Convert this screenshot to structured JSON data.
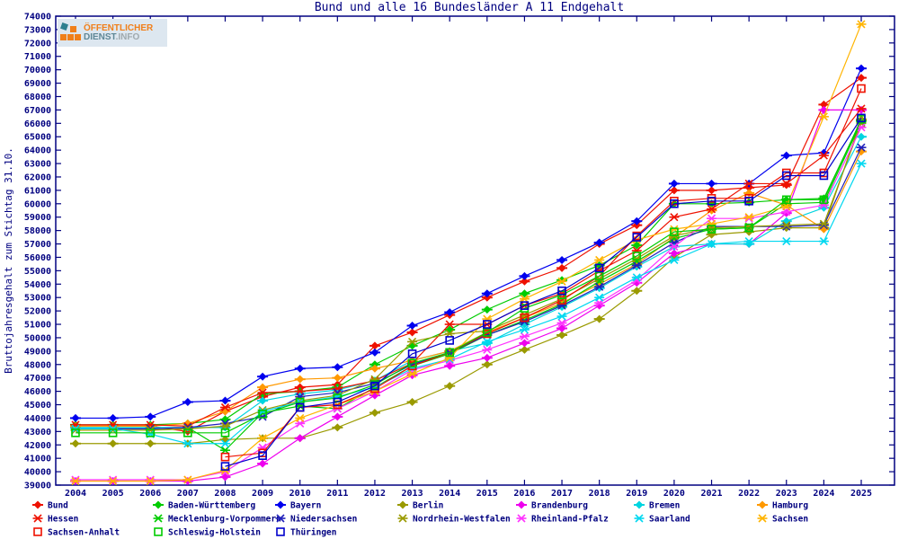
{
  "title": "Bund und alle 16 Bundesländer A 11 Endgehalt",
  "logo": {
    "line1": "ÖFFENTLICHER",
    "line2_part1": "DIENST",
    "line2_part2": ".INFO"
  },
  "colors": {
    "axis": "#000080",
    "title": "#000080",
    "tick_label": "#000080",
    "legend_label": "#000080",
    "background": "#ffffff"
  },
  "chart_data": {
    "type": "line",
    "title": "Bund und alle 16 Bundesländer A 11 Endgehalt",
    "xlabel": "",
    "ylabel": "Bruttojahresgehalt zum Stichtag 31.10.",
    "ylim": [
      39000,
      74000
    ],
    "ytick_step": 1000,
    "grid": false,
    "legend_position": "bottom",
    "x": [
      2004,
      2005,
      2006,
      2007,
      2008,
      2009,
      2010,
      2011,
      2012,
      2013,
      2014,
      2015,
      2016,
      2017,
      2018,
      2019,
      2020,
      2021,
      2022,
      2023,
      2024,
      2025
    ],
    "series": [
      {
        "name": "Bund",
        "color": "#ee1100",
        "marker": "diamond",
        "values": [
          43400,
          43400,
          43400,
          43000,
          44500,
          45600,
          46300,
          46500,
          49400,
          50400,
          51700,
          53000,
          54200,
          55200,
          57000,
          58400,
          61000,
          61000,
          61200,
          61400,
          67400,
          69400
        ]
      },
      {
        "name": "Baden-Württemberg",
        "color": "#00cc00",
        "marker": "diamond",
        "values": [
          43500,
          43500,
          43500,
          43600,
          43900,
          45800,
          46000,
          46300,
          48000,
          49400,
          50600,
          52100,
          53300,
          54300,
          55400,
          56900,
          60000,
          60000,
          60100,
          60300,
          60400,
          66200
        ]
      },
      {
        "name": "Bayern",
        "color": "#0000ee",
        "marker": "diamond",
        "values": [
          44000,
          44000,
          44100,
          45200,
          45300,
          47100,
          47700,
          47800,
          48900,
          50900,
          51900,
          53300,
          54600,
          55800,
          57100,
          58700,
          61500,
          61500,
          61500,
          63600,
          63800,
          70100
        ]
      },
      {
        "name": "Berlin",
        "color": "#9a9a00",
        "marker": "diamond",
        "values": [
          42100,
          42100,
          42100,
          42100,
          42400,
          42500,
          42500,
          43300,
          44400,
          45200,
          46400,
          48000,
          49100,
          50200,
          51400,
          53500,
          56000,
          57700,
          57900,
          58200,
          58200,
          66300
        ]
      },
      {
        "name": "Brandenburg",
        "color": "#ee00ee",
        "marker": "diamond",
        "values": [
          39300,
          39300,
          39300,
          39300,
          39600,
          40600,
          42500,
          44100,
          45700,
          47200,
          47900,
          48500,
          49600,
          50700,
          52400,
          54100,
          56300,
          57000,
          57000,
          59300,
          67000,
          67000
        ]
      },
      {
        "name": "Bremen",
        "color": "#00d4e0",
        "marker": "diamond",
        "values": [
          43300,
          43300,
          43300,
          43300,
          43300,
          45300,
          45800,
          46100,
          46800,
          48300,
          49000,
          49600,
          51000,
          52300,
          53700,
          55300,
          56800,
          57000,
          57000,
          58700,
          59700,
          65000
        ]
      },
      {
        "name": "Hamburg",
        "color": "#ff9900",
        "marker": "diamond",
        "values": [
          43400,
          43400,
          43400,
          43600,
          44500,
          46300,
          46900,
          47000,
          47700,
          48300,
          49000,
          50400,
          51500,
          52600,
          54000,
          55500,
          57500,
          59500,
          60800,
          59900,
          58100,
          63900
        ]
      },
      {
        "name": "Hessen",
        "color": "#ee1100",
        "marker": "star",
        "values": [
          43500,
          43500,
          43500,
          43400,
          44800,
          45900,
          46000,
          46200,
          46800,
          48100,
          51000,
          51000,
          52400,
          53300,
          55000,
          56500,
          59000,
          59600,
          61500,
          61500,
          63600,
          67100
        ]
      },
      {
        "name": "Mecklenburg-Vorpommern",
        "color": "#00cc00",
        "marker": "star",
        "values": [
          43200,
          43200,
          43200,
          43300,
          41600,
          44400,
          44900,
          44700,
          46300,
          47900,
          48800,
          50200,
          51300,
          52500,
          54200,
          55700,
          57400,
          58100,
          58200,
          60000,
          60100,
          66100
        ]
      },
      {
        "name": "Niedersachsen",
        "color": "#2020bb",
        "marker": "star",
        "values": [
          43200,
          43200,
          43200,
          43300,
          43600,
          44100,
          45600,
          45900,
          46600,
          48000,
          48900,
          50200,
          51200,
          52400,
          53800,
          55400,
          57100,
          58300,
          58300,
          58300,
          58400,
          64200
        ]
      },
      {
        "name": "Nordrhein-Westfalen",
        "color": "#9a9a00",
        "marker": "star",
        "values": [
          43100,
          43100,
          43100,
          43200,
          43400,
          44600,
          45300,
          45700,
          46900,
          49700,
          50300,
          50500,
          51700,
          52900,
          54400,
          55900,
          57600,
          58200,
          58300,
          58400,
          58500,
          66000
        ]
      },
      {
        "name": "Rheinland-Pfalz",
        "color": "#ff33ff",
        "marker": "star",
        "values": [
          39400,
          39400,
          39400,
          39400,
          40000,
          41800,
          43600,
          44700,
          46000,
          47600,
          48300,
          49100,
          50100,
          51100,
          52600,
          54300,
          56800,
          58900,
          58900,
          59400,
          59900,
          65700
        ]
      },
      {
        "name": "Saarland",
        "color": "#00d8f0",
        "marker": "star",
        "values": [
          43200,
          43200,
          42800,
          42100,
          42100,
          44500,
          45200,
          45600,
          46300,
          47700,
          48400,
          49700,
          50600,
          51600,
          53000,
          54500,
          55800,
          57000,
          57200,
          57200,
          57200,
          63000
        ]
      },
      {
        "name": "Sachsen",
        "color": "#ffb400",
        "marker": "star",
        "values": [
          39300,
          39300,
          39300,
          39400,
          40100,
          42500,
          44000,
          45000,
          46000,
          47300,
          48500,
          51400,
          52900,
          54200,
          55800,
          57300,
          58100,
          58500,
          59000,
          59800,
          66500,
          73400
        ]
      },
      {
        "name": "Sachsen-Anhalt",
        "color": "#ee1100",
        "marker": "square",
        "values": [
          null,
          null,
          null,
          null,
          41100,
          41400,
          44800,
          45000,
          46200,
          47900,
          48900,
          50300,
          51500,
          52800,
          54600,
          57600,
          60200,
          60400,
          60400,
          62300,
          62300,
          68600
        ]
      },
      {
        "name": "Schleswig-Holstein",
        "color": "#00cc00",
        "marker": "square",
        "values": [
          42900,
          42900,
          42900,
          42900,
          42900,
          44300,
          45200,
          45500,
          46500,
          48100,
          48900,
          50400,
          52200,
          53200,
          54600,
          56100,
          57900,
          58100,
          58200,
          60300,
          60300,
          66300
        ]
      },
      {
        "name": "Thüringen",
        "color": "#0000cc",
        "marker": "square",
        "values": [
          null,
          null,
          null,
          null,
          40400,
          41200,
          44800,
          45200,
          46400,
          48800,
          49800,
          51000,
          52400,
          53500,
          55200,
          57500,
          60000,
          60200,
          60200,
          62100,
          62100,
          66400
        ]
      }
    ],
    "legend_rows": [
      [
        "Bund",
        "Baden-Württemberg",
        "Bayern",
        "Berlin",
        "Brandenburg",
        "Bremen",
        "Hamburg"
      ],
      [
        "Hessen",
        "Mecklenburg-Vorpommern",
        "Niedersachsen",
        "Nordrhein-Westfalen",
        "Rheinland-Pfalz",
        "Saarland",
        "Sachsen"
      ],
      [
        "Sachsen-Anhalt",
        "Schleswig-Holstein",
        "Thüringen"
      ]
    ]
  }
}
